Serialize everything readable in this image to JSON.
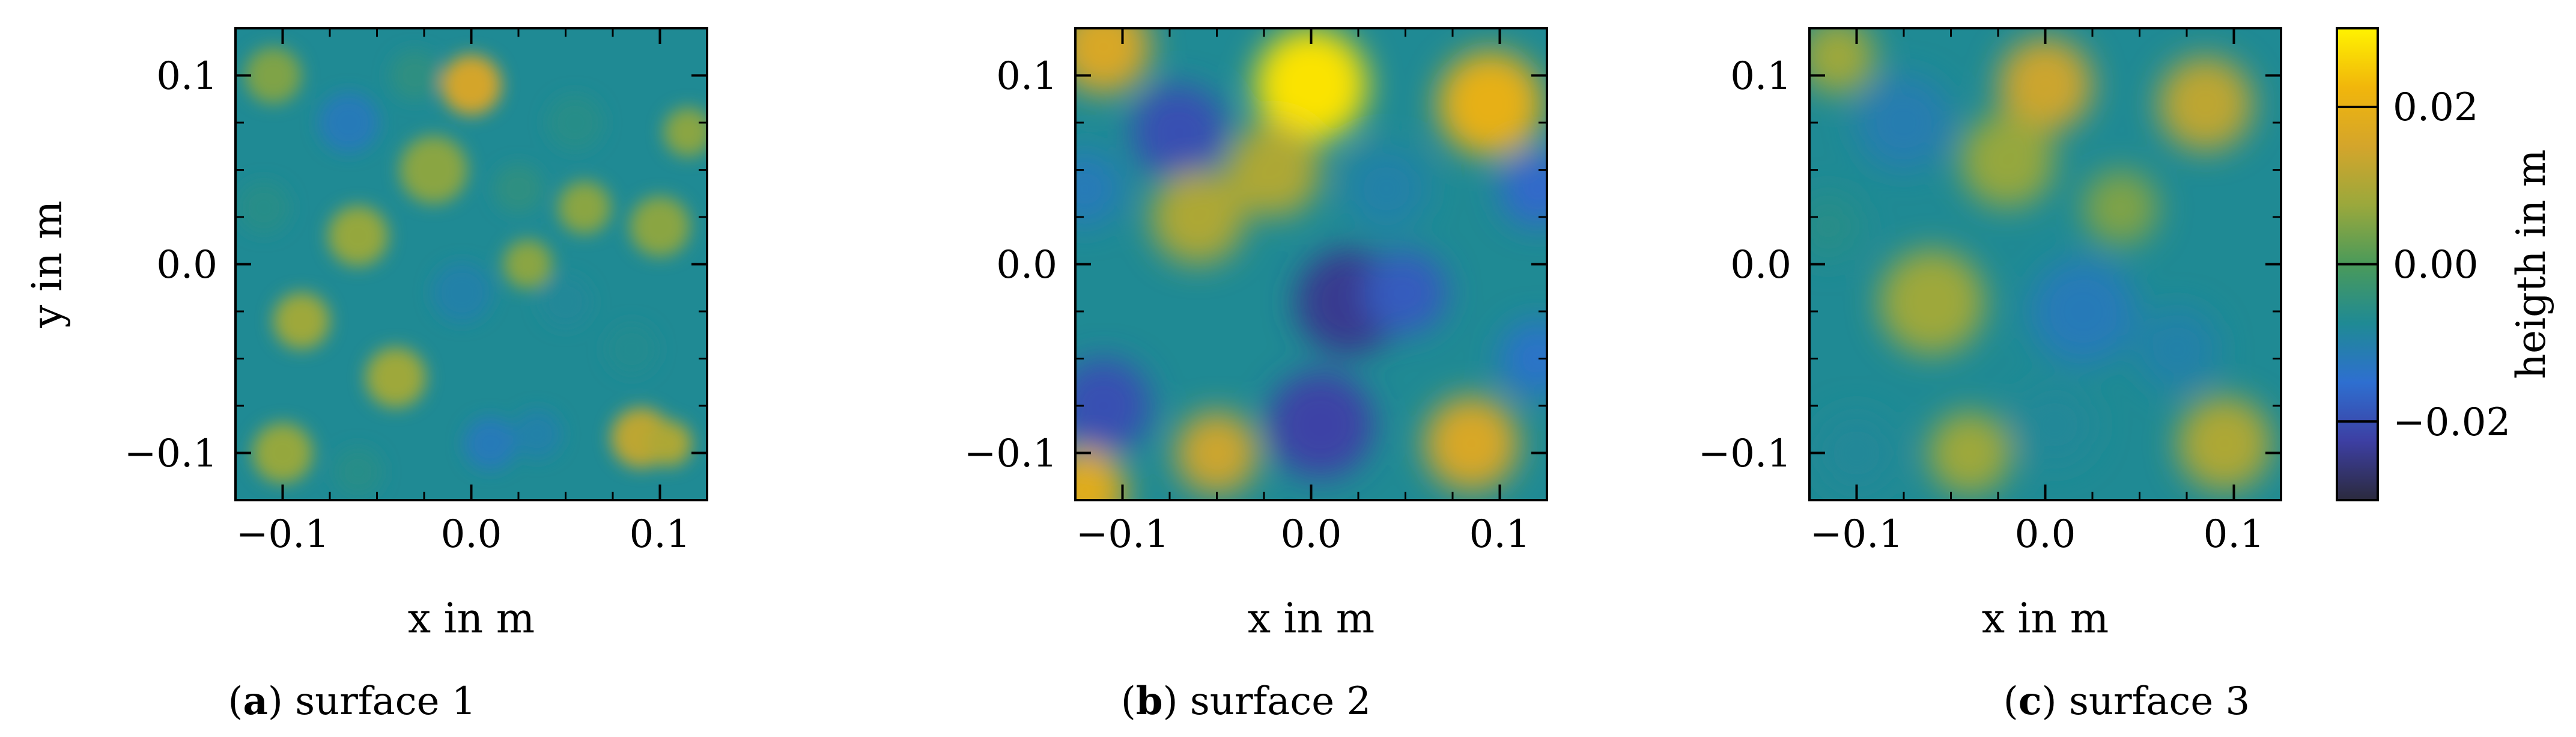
{
  "chart_data": [
    {
      "type": "heatmap",
      "caption_letter": "a",
      "caption_text": " surface 1",
      "xlabel": "x in m",
      "ylabel": "y in m",
      "xlim": [
        -0.125,
        0.125
      ],
      "ylim": [
        -0.125,
        0.125
      ],
      "xticks": [
        -0.1,
        0.0,
        0.1
      ],
      "yticks": [
        -0.1,
        0.0,
        0.1
      ],
      "xtick_labels": [
        "−0.1",
        "0.0",
        "0.1"
      ],
      "ytick_labels": [
        "−0.1",
        "0.0",
        "0.1"
      ],
      "approx_height_range_m": [
        -0.012,
        0.015
      ],
      "blobs": [
        {
          "x": 0.0,
          "y": 0.095,
          "h": 0.015,
          "r": 0.016
        },
        {
          "x": 0.09,
          "y": -0.092,
          "h": 0.012,
          "r": 0.016
        },
        {
          "x": 0.105,
          "y": -0.095,
          "h": 0.01,
          "r": 0.012
        },
        {
          "x": -0.065,
          "y": 0.075,
          "h": -0.012,
          "r": 0.016
        },
        {
          "x": -0.02,
          "y": 0.05,
          "h": 0.006,
          "r": 0.018
        },
        {
          "x": 0.055,
          "y": 0.075,
          "h": -0.006,
          "r": 0.015
        },
        {
          "x": -0.06,
          "y": 0.015,
          "h": 0.007,
          "r": 0.016
        },
        {
          "x": -0.005,
          "y": -0.015,
          "h": -0.01,
          "r": 0.016
        },
        {
          "x": 0.05,
          "y": -0.02,
          "h": -0.008,
          "r": 0.014
        },
        {
          "x": -0.09,
          "y": -0.03,
          "h": 0.008,
          "r": 0.015
        },
        {
          "x": -0.04,
          "y": -0.06,
          "h": 0.008,
          "r": 0.016
        },
        {
          "x": 0.01,
          "y": -0.095,
          "h": -0.012,
          "r": 0.014
        },
        {
          "x": 0.035,
          "y": -0.09,
          "h": -0.01,
          "r": 0.013
        },
        {
          "x": -0.1,
          "y": -0.1,
          "h": 0.007,
          "r": 0.016
        },
        {
          "x": 0.1,
          "y": 0.02,
          "h": 0.006,
          "r": 0.016
        },
        {
          "x": -0.105,
          "y": 0.1,
          "h": 0.005,
          "r": 0.015
        },
        {
          "x": 0.06,
          "y": 0.03,
          "h": 0.006,
          "r": 0.014
        },
        {
          "x": 0.085,
          "y": -0.045,
          "h": -0.007,
          "r": 0.014
        },
        {
          "x": -0.11,
          "y": 0.03,
          "h": -0.006,
          "r": 0.014
        },
        {
          "x": 0.03,
          "y": 0.0,
          "h": 0.006,
          "r": 0.013
        },
        {
          "x": -0.03,
          "y": 0.1,
          "h": -0.005,
          "r": 0.013
        },
        {
          "x": 0.115,
          "y": 0.07,
          "h": 0.006,
          "r": 0.013
        },
        {
          "x": -0.06,
          "y": -0.11,
          "h": -0.006,
          "r": 0.013
        },
        {
          "x": 0.025,
          "y": 0.04,
          "h": -0.005,
          "r": 0.013
        }
      ]
    },
    {
      "type": "heatmap",
      "caption_letter": "b",
      "caption_text": " surface 2",
      "xlabel": "x in m",
      "ylabel": "",
      "xlim": [
        -0.125,
        0.125
      ],
      "ylim": [
        -0.125,
        0.125
      ],
      "xticks": [
        -0.1,
        0.0,
        0.1
      ],
      "yticks": [
        -0.1,
        0.0,
        0.1
      ],
      "xtick_labels": [
        "−0.1",
        "0.0",
        "0.1"
      ],
      "ytick_labels": [
        "−0.1",
        "0.0",
        "0.1"
      ],
      "approx_height_range_m": [
        -0.025,
        0.028
      ],
      "blobs": [
        {
          "x": 0.0,
          "y": 0.095,
          "h": 0.028,
          "r": 0.03
        },
        {
          "x": 0.095,
          "y": 0.085,
          "h": 0.02,
          "r": 0.028
        },
        {
          "x": -0.11,
          "y": 0.115,
          "h": 0.016,
          "r": 0.025
        },
        {
          "x": -0.07,
          "y": 0.07,
          "h": -0.02,
          "r": 0.025
        },
        {
          "x": 0.02,
          "y": -0.02,
          "h": -0.024,
          "r": 0.028
        },
        {
          "x": 0.05,
          "y": -0.015,
          "h": -0.018,
          "r": 0.022
        },
        {
          "x": 0.005,
          "y": -0.085,
          "h": -0.022,
          "r": 0.028
        },
        {
          "x": -0.11,
          "y": -0.075,
          "h": -0.02,
          "r": 0.025
        },
        {
          "x": 0.085,
          "y": -0.095,
          "h": 0.016,
          "r": 0.025
        },
        {
          "x": -0.05,
          "y": -0.1,
          "h": 0.014,
          "r": 0.022
        },
        {
          "x": -0.02,
          "y": 0.05,
          "h": 0.01,
          "r": 0.025
        },
        {
          "x": -0.06,
          "y": 0.025,
          "h": 0.01,
          "r": 0.025
        },
        {
          "x": -0.12,
          "y": -0.12,
          "h": 0.018,
          "r": 0.022
        },
        {
          "x": 0.12,
          "y": 0.04,
          "h": -0.016,
          "r": 0.02
        },
        {
          "x": 0.04,
          "y": 0.04,
          "h": -0.01,
          "r": 0.022
        },
        {
          "x": -0.12,
          "y": 0.04,
          "h": -0.012,
          "r": 0.02
        },
        {
          "x": 0.12,
          "y": -0.05,
          "h": -0.014,
          "r": 0.02
        }
      ]
    },
    {
      "type": "heatmap",
      "caption_letter": "c",
      "caption_text": " surface 3",
      "xlabel": "x in m",
      "ylabel": "",
      "xlim": [
        -0.125,
        0.125
      ],
      "ylim": [
        -0.125,
        0.125
      ],
      "xticks": [
        -0.1,
        0.0,
        0.1
      ],
      "yticks": [
        -0.1,
        0.0,
        0.1
      ],
      "xtick_labels": [
        "−0.1",
        "0.0",
        "0.1"
      ],
      "ytick_labels": [
        "−0.1",
        "0.0",
        "0.1"
      ],
      "approx_height_range_m": [
        -0.012,
        0.014
      ],
      "blobs": [
        {
          "x": 0.0,
          "y": 0.095,
          "h": 0.014,
          "r": 0.025
        },
        {
          "x": 0.085,
          "y": 0.085,
          "h": 0.012,
          "r": 0.025
        },
        {
          "x": -0.075,
          "y": 0.075,
          "h": -0.011,
          "r": 0.025
        },
        {
          "x": -0.02,
          "y": 0.055,
          "h": 0.007,
          "r": 0.025
        },
        {
          "x": 0.02,
          "y": -0.025,
          "h": -0.012,
          "r": 0.028
        },
        {
          "x": 0.07,
          "y": -0.045,
          "h": -0.01,
          "r": 0.022
        },
        {
          "x": -0.06,
          "y": -0.02,
          "h": 0.008,
          "r": 0.028
        },
        {
          "x": 0.095,
          "y": -0.095,
          "h": 0.01,
          "r": 0.025
        },
        {
          "x": -0.1,
          "y": -0.1,
          "h": -0.008,
          "r": 0.022
        },
        {
          "x": -0.04,
          "y": -0.1,
          "h": 0.008,
          "r": 0.022
        },
        {
          "x": 0.005,
          "y": -0.085,
          "h": -0.008,
          "r": 0.022
        },
        {
          "x": -0.11,
          "y": 0.11,
          "h": 0.008,
          "r": 0.02
        },
        {
          "x": 0.04,
          "y": 0.03,
          "h": 0.005,
          "r": 0.02
        },
        {
          "x": -0.115,
          "y": 0.02,
          "h": -0.006,
          "r": 0.018
        }
      ]
    }
  ],
  "colorbar": {
    "label": "heigth in m",
    "vmin": -0.03,
    "vmax": 0.03,
    "ticks": [
      -0.02,
      0.0,
      0.02
    ],
    "tick_labels": [
      "−0.02",
      "0.00",
      "0.02"
    ],
    "colormap": [
      "#2b2a3d",
      "#3d3fa3",
      "#2e6fd0",
      "#1f8a94",
      "#4a9a5a",
      "#9aa83c",
      "#d4a52b",
      "#f1b60b",
      "#fff300"
    ]
  }
}
